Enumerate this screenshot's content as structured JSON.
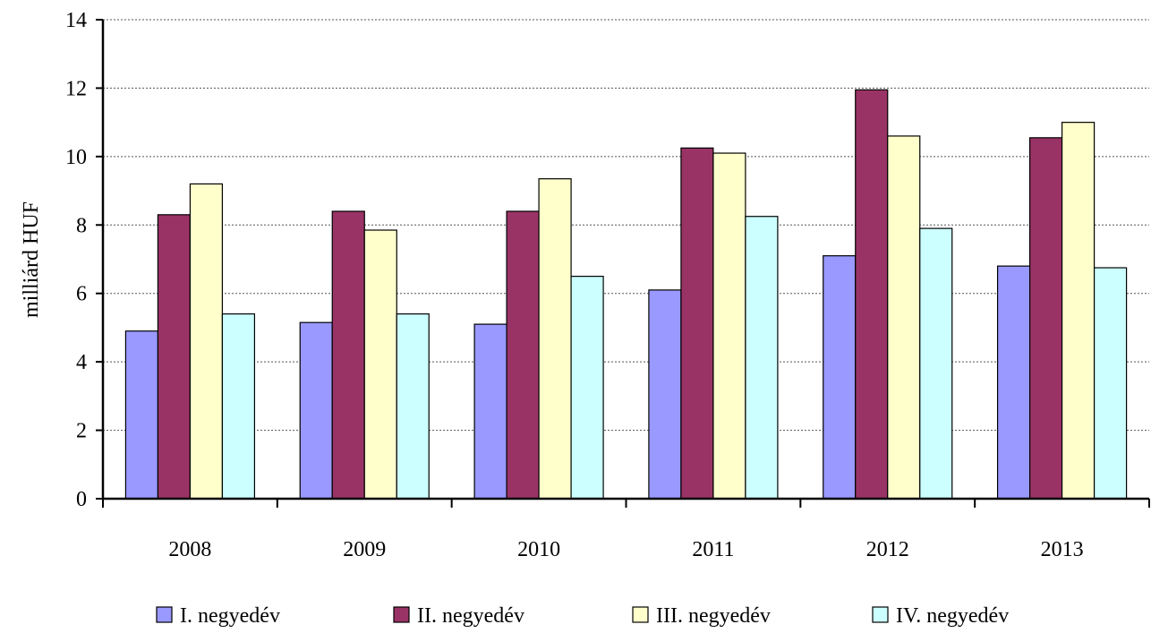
{
  "chart_data": {
    "type": "bar",
    "title": "",
    "xlabel": "",
    "ylabel": "milliárd HUF",
    "ylim": [
      0,
      14
    ],
    "yticks": [
      0,
      2,
      4,
      6,
      8,
      10,
      12,
      14
    ],
    "grid": "horizontal-dotted",
    "legend_position": "bottom",
    "categories": [
      "2008",
      "2009",
      "2010",
      "2011",
      "2012",
      "2013"
    ],
    "series": [
      {
        "name": "I. negyedév",
        "color": "#9999ff",
        "values": [
          4.9,
          5.15,
          5.1,
          6.1,
          7.1,
          6.8
        ]
      },
      {
        "name": "II. negyedév",
        "color": "#993366",
        "values": [
          8.3,
          8.4,
          8.4,
          10.25,
          11.95,
          10.55
        ]
      },
      {
        "name": "III. negyedév",
        "color": "#ffffcc",
        "values": [
          9.2,
          7.85,
          9.35,
          10.1,
          10.6,
          11.0
        ]
      },
      {
        "name": "IV. negyedév",
        "color": "#ccffff",
        "values": [
          5.4,
          5.4,
          6.5,
          8.25,
          7.9,
          6.75
        ]
      }
    ]
  }
}
